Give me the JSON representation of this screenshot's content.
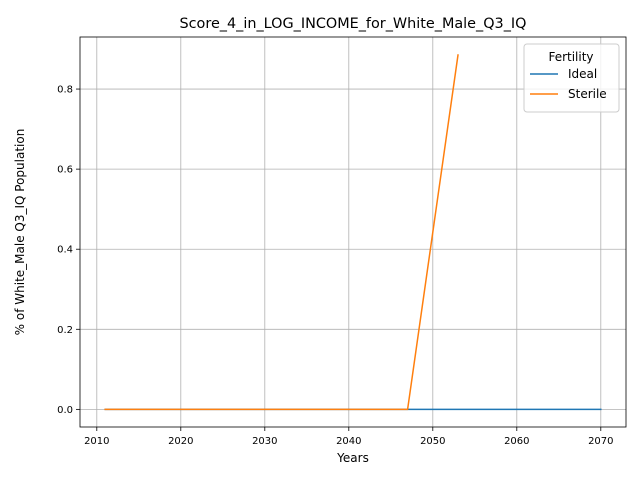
{
  "chart_data": {
    "type": "line",
    "title": "Score_4_in_LOG_INCOME_for_White_Male_Q3_IQ",
    "xlabel": "Years",
    "ylabel": "% of White_Male Q3_IQ Population",
    "xlim": [
      2008,
      2073
    ],
    "ylim": [
      -0.044,
      0.93
    ],
    "xticks": [
      2010,
      2020,
      2030,
      2040,
      2050,
      2060,
      2070
    ],
    "xtick_labels": [
      "2010",
      "2020",
      "2030",
      "2040",
      "2050",
      "2060",
      "2070"
    ],
    "yticks": [
      0.0,
      0.2,
      0.4,
      0.6,
      0.8
    ],
    "ytick_labels": [
      "0.0",
      "0.2",
      "0.4",
      "0.6",
      "0.8"
    ],
    "grid": true,
    "legend": {
      "title": "Fertility",
      "position": "top-right"
    },
    "series": [
      {
        "name": "Ideal",
        "color": "#1f77b4",
        "x": [
          2011,
          2038,
          2047,
          2053,
          2070
        ],
        "y": [
          0.0,
          0.0,
          0.0,
          0.0,
          0.0
        ]
      },
      {
        "name": "Sterile",
        "color": "#ff7f0e",
        "x": [
          2011,
          2038,
          2047,
          2053
        ],
        "y": [
          0.0,
          0.0,
          0.0,
          0.885
        ]
      }
    ]
  }
}
